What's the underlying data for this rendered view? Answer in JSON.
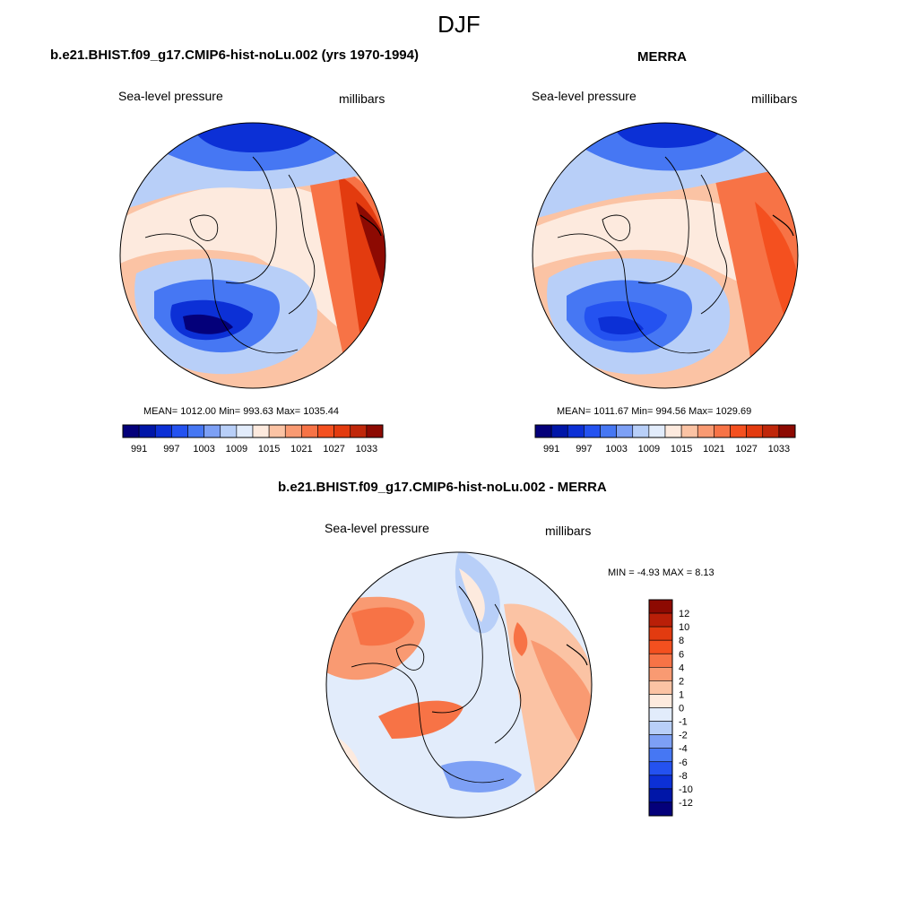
{
  "figure": {
    "title": "DJF"
  },
  "panels": {
    "model": {
      "title": "b.e21.BHIST.f09_g17.CMIP6-hist-noLu.002 (yrs 1970-1994)",
      "variable": "Sea-level pressure",
      "units": "millibars",
      "stats_text": "MEAN= 1012.00   Min= 993.63   Max= 1035.44"
    },
    "obs": {
      "title": "MERRA",
      "variable": "Sea-level pressure",
      "units": "millibars",
      "stats_text": "MEAN= 1011.67   Min= 994.56   Max= 1029.69"
    },
    "diff": {
      "title": "b.e21.BHIST.f09_g17.CMIP6-hist-noLu.002 - MERRA",
      "variable": "Sea-level pressure",
      "units": "millibars",
      "stats_text": "MIN =   -4.93 MAX =   8.13"
    }
  },
  "colorbars": {
    "abs": {
      "colors": [
        "#04007a",
        "#0016a8",
        "#0c30d6",
        "#2452f0",
        "#4677f3",
        "#7da0f5",
        "#b8cff8",
        "#e2ecfb",
        "#fdeade",
        "#fbc3a4",
        "#f99a72",
        "#f77346",
        "#f4501f",
        "#e33b0f",
        "#c0270a",
        "#8d0a02"
      ],
      "tick_labels": [
        "991",
        "997",
        "1003",
        "1009",
        "1015",
        "1021",
        "1027",
        "1033"
      ]
    },
    "diff": {
      "colors": [
        "#8d0a02",
        "#b91f08",
        "#e23b10",
        "#f4501f",
        "#f77346",
        "#f99a72",
        "#fbc3a4",
        "#fdeade",
        "#e2ecfb",
        "#b8cff8",
        "#7da0f5",
        "#4677f3",
        "#2452f0",
        "#0c30d6",
        "#0016a8",
        "#04007a"
      ],
      "tick_labels": [
        "12",
        "10",
        "8",
        "6",
        "4",
        "2",
        "1",
        "0",
        "-1",
        "-2",
        "-4",
        "-6",
        "-8",
        "-10",
        "-12"
      ]
    }
  }
}
